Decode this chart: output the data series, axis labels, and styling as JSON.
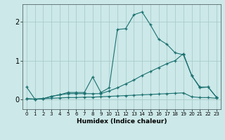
{
  "xlabel": "Humidex (Indice chaleur)",
  "bg_color": "#cce8e8",
  "grid_color": "#aacccc",
  "line_color": "#1a7070",
  "xlim": [
    -0.5,
    23.5
  ],
  "ylim": [
    -0.25,
    2.45
  ],
  "xticks": [
    0,
    1,
    2,
    3,
    4,
    5,
    6,
    7,
    8,
    9,
    10,
    11,
    12,
    13,
    14,
    15,
    16,
    17,
    18,
    19,
    20,
    21,
    22,
    23
  ],
  "yticks": [
    0,
    1,
    2
  ],
  "line1_x": [
    0,
    1,
    2,
    3,
    4,
    5,
    6,
    7,
    8,
    9,
    10,
    11,
    12,
    13,
    14,
    15,
    16,
    17,
    18,
    19,
    20,
    21,
    22,
    23
  ],
  "line1_y": [
    0.02,
    0.01,
    0.02,
    0.03,
    0.04,
    0.05,
    0.05,
    0.06,
    0.06,
    0.07,
    0.08,
    0.09,
    0.1,
    0.11,
    0.12,
    0.13,
    0.14,
    0.15,
    0.16,
    0.17,
    0.07,
    0.05,
    0.05,
    0.03
  ],
  "line2_x": [
    0,
    1,
    2,
    3,
    4,
    5,
    6,
    7,
    8,
    9,
    10,
    11,
    12,
    13,
    14,
    15,
    16,
    17,
    18,
    19,
    20,
    21,
    22,
    23
  ],
  "line2_y": [
    0.02,
    0.01,
    0.02,
    0.08,
    0.12,
    0.15,
    0.15,
    0.15,
    0.15,
    0.15,
    0.22,
    0.3,
    0.4,
    0.5,
    0.62,
    0.72,
    0.82,
    0.92,
    1.0,
    1.18,
    0.62,
    0.32,
    0.32,
    0.06
  ],
  "line3_x": [
    0,
    1,
    2,
    3,
    4,
    5,
    6,
    7,
    8,
    9,
    10,
    11,
    12,
    13,
    14,
    15,
    16,
    17,
    18,
    19,
    20,
    21,
    22,
    23
  ],
  "line3_y": [
    0.32,
    0.01,
    0.02,
    0.08,
    0.12,
    0.18,
    0.18,
    0.18,
    0.58,
    0.18,
    0.3,
    1.8,
    1.82,
    2.18,
    2.25,
    1.92,
    1.55,
    1.42,
    1.2,
    1.15,
    0.62,
    0.3,
    0.32,
    0.06
  ]
}
